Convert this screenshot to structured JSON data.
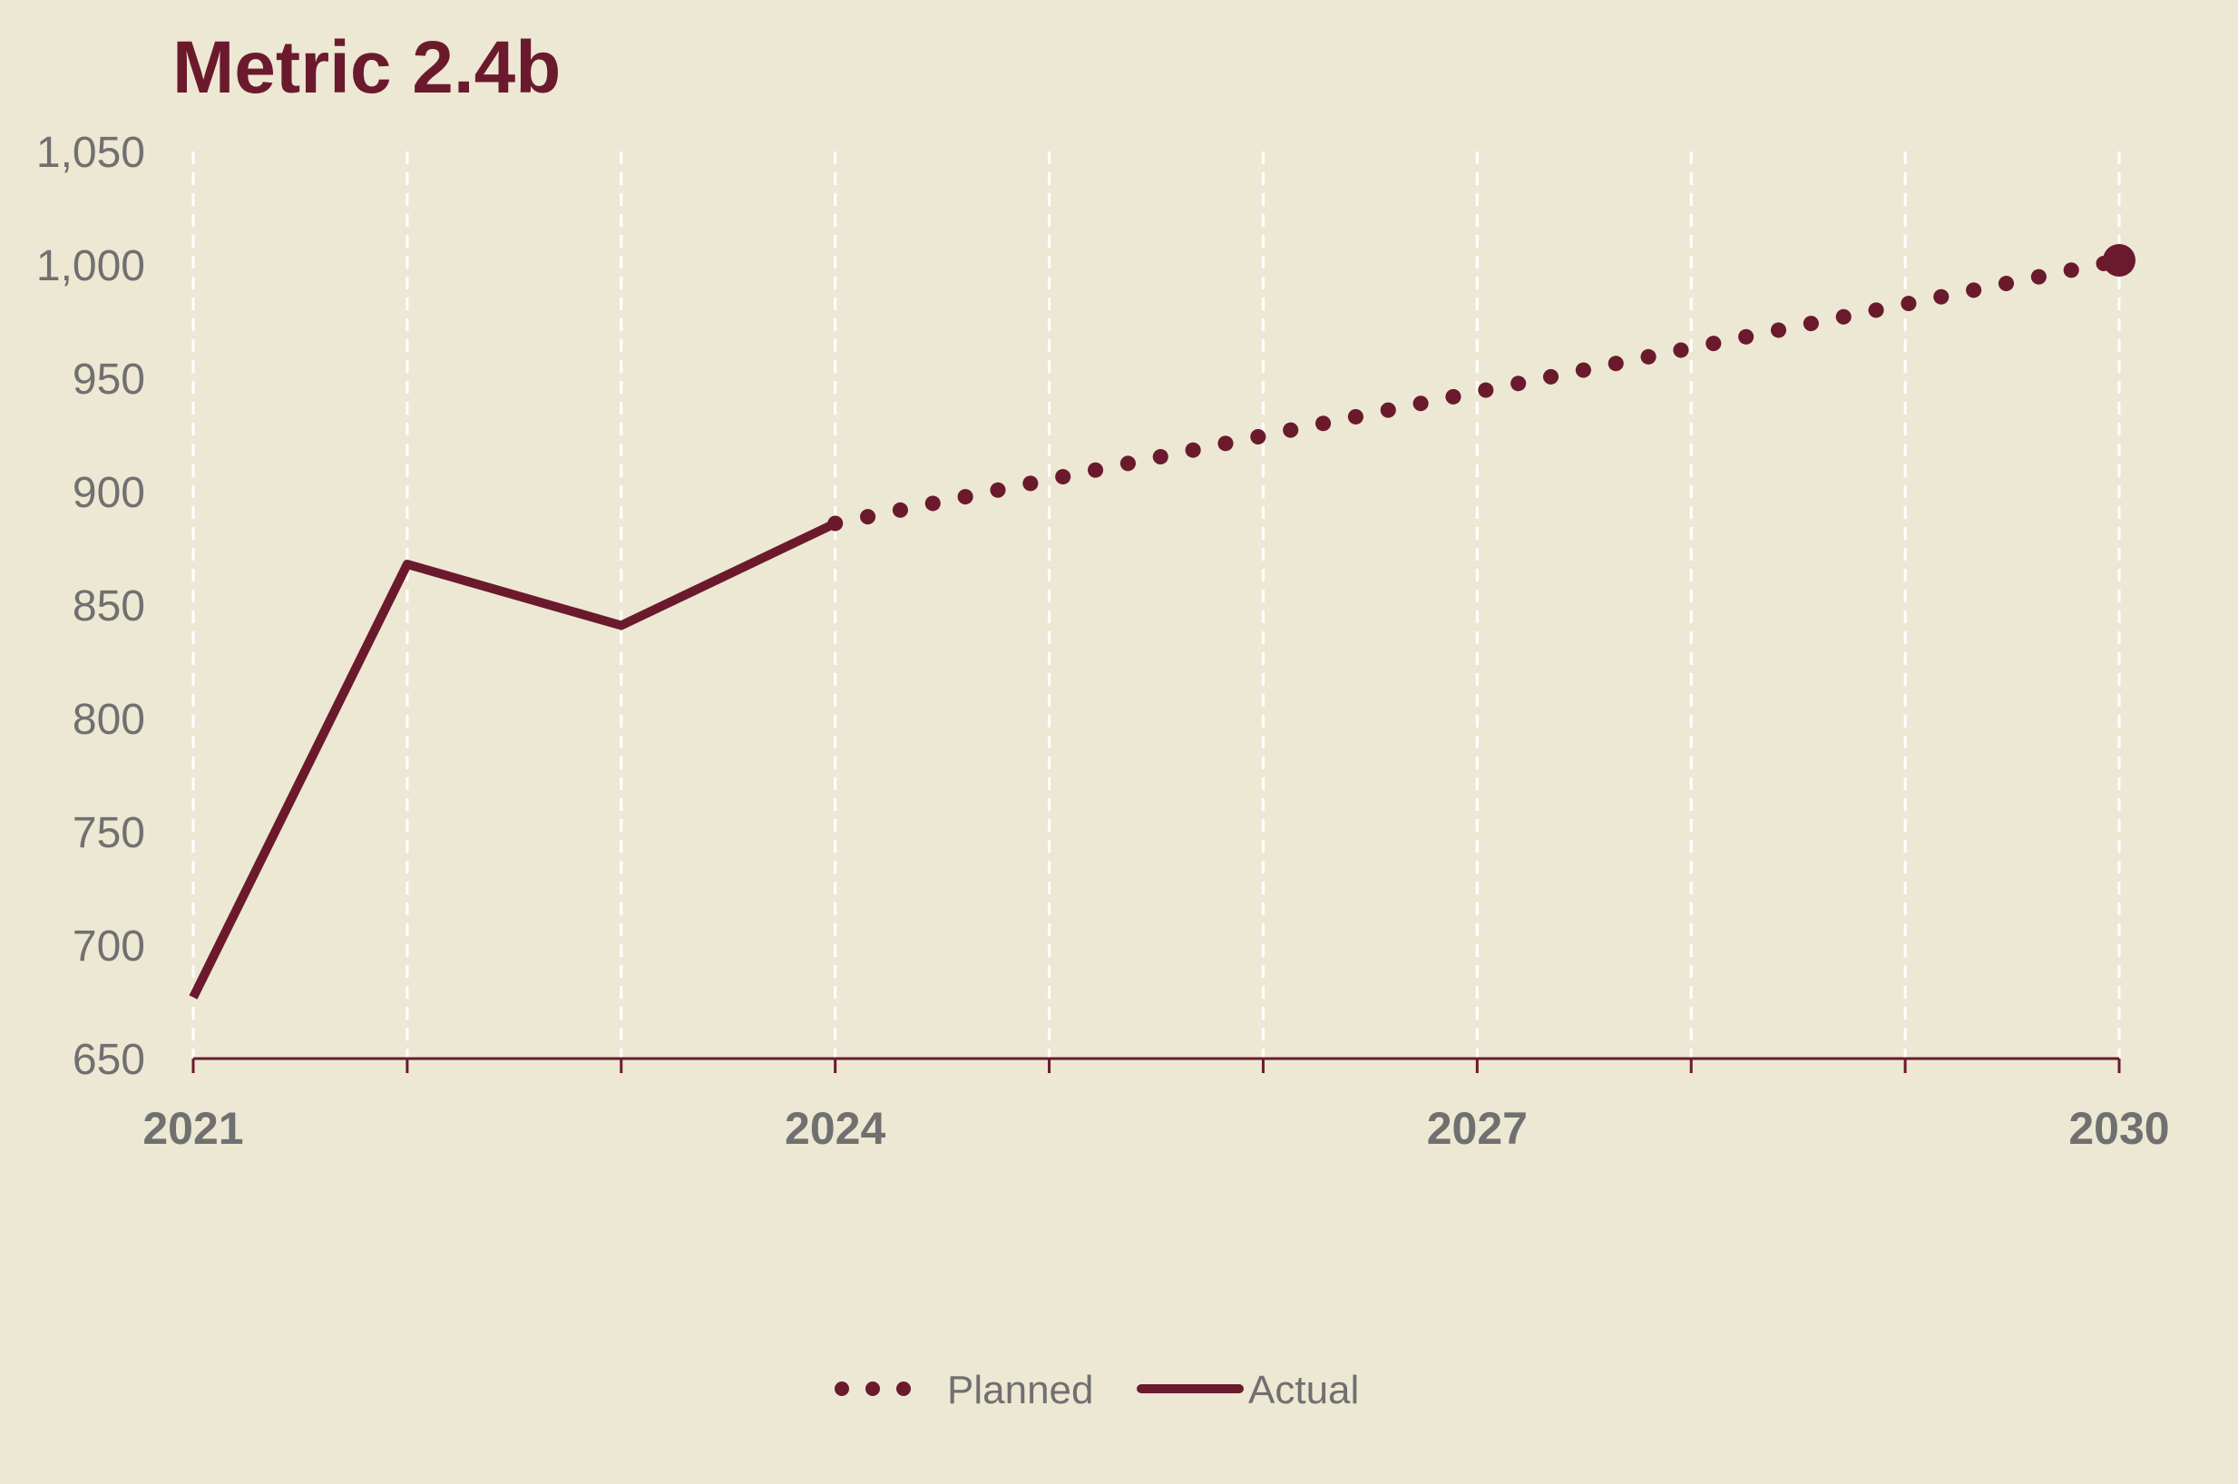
{
  "colors": {
    "background": "#EDE8D3",
    "series": "#6B1A2E",
    "grid": "#FFFFFF",
    "axis_text": "#707070"
  },
  "chart_data": {
    "type": "line",
    "title": "Metric 2.4b",
    "xlabel": "",
    "ylabel": "",
    "xlim": [
      2021,
      2030
    ],
    "ylim": [
      650,
      1050
    ],
    "x_ticks": [
      2021,
      2022,
      2023,
      2024,
      2025,
      2026,
      2027,
      2028,
      2029,
      2030
    ],
    "x_tick_labels": [
      {
        "x": 2021,
        "label": "2021"
      },
      {
        "x": 2024,
        "label": "2024"
      },
      {
        "x": 2027,
        "label": "2027"
      },
      {
        "x": 2030,
        "label": "2030"
      }
    ],
    "y_ticks": [
      650,
      700,
      750,
      800,
      850,
      900,
      950,
      1000,
      1050
    ],
    "y_tick_labels": [
      "650",
      "700",
      "750",
      "800",
      "850",
      "900",
      "950",
      "1,000",
      "1,050"
    ],
    "grid": "vertical dashed",
    "legend_position": "bottom-center",
    "series": [
      {
        "name": "Planned",
        "style": "dotted",
        "x": [
          2024,
          2030
        ],
        "y": [
          886,
          1002
        ],
        "end_marker": true
      },
      {
        "name": "Actual",
        "style": "solid",
        "x": [
          2021,
          2022,
          2023,
          2024
        ],
        "y": [
          677,
          868,
          841,
          886
        ]
      }
    ]
  }
}
